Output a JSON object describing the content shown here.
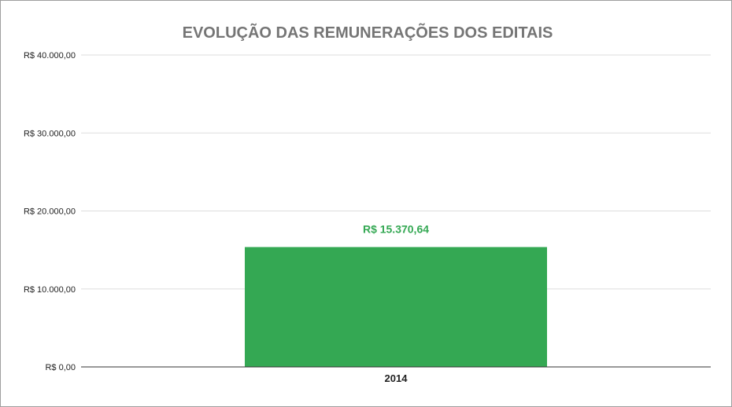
{
  "chart_data": {
    "type": "bar",
    "title": "EVOLUÇÃO DAS REMUNERAÇÕES DOS EDITAIS",
    "xlabel": "",
    "ylabel": "",
    "categories": [
      "2014"
    ],
    "values": [
      15370.64
    ],
    "data_labels": [
      "R$ 15.370,64"
    ],
    "ylim": [
      0,
      40000
    ],
    "yticks": [
      0,
      10000,
      20000,
      30000,
      40000
    ],
    "ytick_labels": [
      "R$ 0,00",
      "R$ 10.000,00",
      "R$ 20.000,00",
      "R$ 30.000,00",
      "R$ 40.000,00"
    ],
    "grid": true,
    "legend": "none",
    "colors": {
      "bar": "#34a853",
      "data_label": "#34a853",
      "gridline": "#dddddd",
      "axis": "#333333",
      "title": "#757575"
    }
  }
}
